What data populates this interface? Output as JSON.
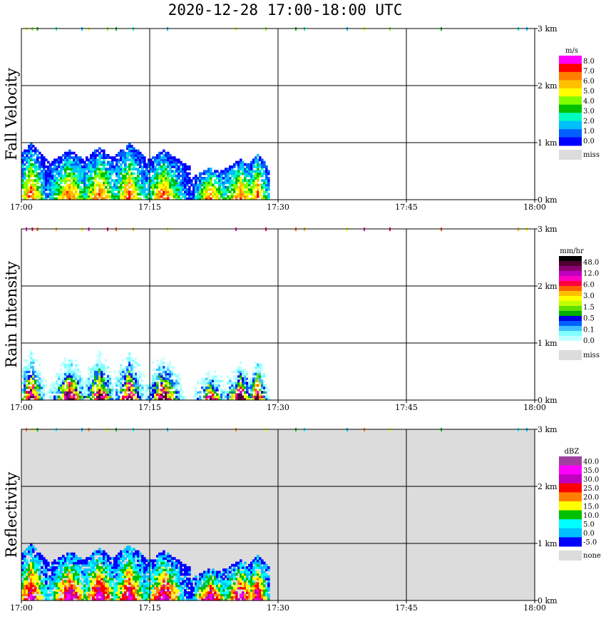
{
  "title": "2020-12-28   17:00-18:00 UTC",
  "x_ticks": [
    "17:00",
    "17:15",
    "17:30",
    "17:45",
    "18:00"
  ],
  "y_ticks": [
    "0 km",
    "1 km",
    "2 km",
    "3 km"
  ],
  "colors": {
    "miss": "#dcdcdc",
    "grid": "#000000"
  },
  "chart_data": [
    {
      "type": "heatmap",
      "title": "",
      "ylabel": "Fall Velocity",
      "xlabel": "",
      "xlim": [
        "17:00",
        "18:00"
      ],
      "ylim": [
        0,
        3
      ],
      "grid": true,
      "legend_unit": "m/s",
      "legend_labels": [
        "8.0",
        "7.0",
        "6.0",
        "5.0",
        "4.0",
        "3.0",
        "2.0",
        "1.0",
        "0.0"
      ],
      "legend_miss_label": "miss",
      "colorscale": [
        "#ff00ff",
        "#ff0000",
        "#ff8000",
        "#ffc000",
        "#ffff00",
        "#80ff00",
        "#00c000",
        "#00ffbf",
        "#00c0ff",
        "#0060ff",
        "#0000ff"
      ],
      "background": "#ffffff",
      "echo_top_km": 1.0,
      "echo_end_time": "17:29"
    },
    {
      "type": "heatmap",
      "title": "",
      "ylabel": "Rain Intensity",
      "xlabel": "",
      "xlim": [
        "17:00",
        "18:00"
      ],
      "ylim": [
        0,
        3
      ],
      "grid": true,
      "legend_unit": "mm/hr",
      "legend_labels": [
        "48.0",
        "12.0",
        "6.0",
        "3.0",
        "1.5",
        "0.5",
        "0.1",
        "0.0"
      ],
      "legend_miss_label": "miss",
      "colorscale": [
        "#000000",
        "#500030",
        "#8c0070",
        "#c000c0",
        "#ff00c0",
        "#ff0040",
        "#ff6000",
        "#ffc000",
        "#ffff00",
        "#c0ff00",
        "#60e000",
        "#00b000",
        "#0000e0",
        "#0060ff",
        "#40c0ff",
        "#80ffff",
        "#c0ffff",
        "#ffffff"
      ],
      "background": "#ffffff",
      "echo_top_km": 1.0,
      "echo_end_time": "17:29"
    },
    {
      "type": "heatmap",
      "title": "",
      "ylabel": "Reflectivity",
      "xlabel": "",
      "xlim": [
        "17:00",
        "18:00"
      ],
      "ylim": [
        0,
        3
      ],
      "grid": true,
      "legend_unit": "dBZ",
      "legend_labels": [
        "40.0",
        "35.0",
        "30.0",
        "25.0",
        "20.0",
        "15.0",
        "10.0",
        "5.0",
        "0.0",
        "-5.0"
      ],
      "legend_miss_label": "none",
      "colorscale": [
        "#a040a0",
        "#ff00ff",
        "#c000c0",
        "#ff0000",
        "#ff8000",
        "#ffff00",
        "#00c000",
        "#00ffff",
        "#00c0ff",
        "#0000ff"
      ],
      "background": "#dcdcdc",
      "echo_top_km": 1.0,
      "echo_end_time": "17:29"
    }
  ]
}
